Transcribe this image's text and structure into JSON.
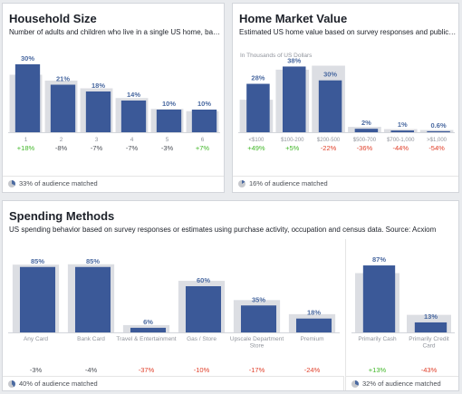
{
  "cards": {
    "household": {
      "title": "Household Size",
      "description": "Number of adults and children who live in a single US home, based...",
      "footer": "33% of audience matched"
    },
    "home_value": {
      "title": "Home Market Value",
      "description": "Estimated US home value based on survey responses and publicly...",
      "footer": "16% of audience matched"
    },
    "spending": {
      "title": "Spending Methods",
      "description": "US spending behavior based on survey responses or estimates using purchase activity, occupation and census data. Source: Acxiom",
      "footer": "40% of audience matched",
      "footer_right": "32% of audience matched"
    }
  },
  "colors": {
    "bar": "#3b5998",
    "benchmark": "#dcdee3",
    "positive": "#42b72a",
    "negative": "#e0402b",
    "neutral": "#90949c"
  },
  "chart_data": [
    {
      "type": "bar",
      "title": "Household Size",
      "categories": [
        "1",
        "2",
        "3",
        "4",
        "5",
        "6"
      ],
      "series": [
        {
          "values": [
            30,
            21,
            18,
            14,
            10,
            10
          ]
        },
        {
          "values": [
            25.4,
            22.8,
            19.4,
            15.1,
            10.3,
            9.3
          ]
        }
      ],
      "value_labels": [
        "30%",
        "21%",
        "18%",
        "14%",
        "10%",
        "10%"
      ],
      "deltas": [
        "+18%",
        "-8%",
        "-7%",
        "-7%",
        "-3%",
        "+7%"
      ],
      "ylim": [
        0,
        32
      ]
    },
    {
      "type": "bar",
      "title": "Home Market Value",
      "ylabel": "In Thousands of US Dollars",
      "categories": [
        "<$100",
        "$100-200",
        "$200-500",
        "$500-700",
        "$700-1,000",
        ">$1,000"
      ],
      "series": [
        {
          "values": [
            28,
            38,
            30,
            2,
            1,
            0.6
          ]
        },
        {
          "values": [
            18.8,
            36.2,
            38.5,
            3.1,
            1.8,
            1.3
          ]
        }
      ],
      "value_labels": [
        "28%",
        "38%",
        "30%",
        "2%",
        "1%",
        "0.6%"
      ],
      "deltas": [
        "+49%",
        "+5%",
        "-22%",
        "-36%",
        "-44%",
        "-54%"
      ],
      "ylim": [
        0,
        44
      ]
    },
    {
      "type": "bar",
      "title": "Spending Methods",
      "categories": [
        "Any Card",
        "Bank Card",
        "Travel & Entertainment",
        "Gas / Store",
        "Upscale Department Store",
        "Premium"
      ],
      "series": [
        {
          "values": [
            85,
            85,
            6,
            60,
            35,
            18
          ]
        },
        {
          "values": [
            88,
            88.5,
            9.5,
            67,
            42,
            23.7
          ]
        }
      ],
      "value_labels": [
        "85%",
        "85%",
        "6%",
        "60%",
        "35%",
        "18%"
      ],
      "deltas": [
        "-3%",
        "-4%",
        "-37%",
        "-10%",
        "-17%",
        "-24%"
      ],
      "ylim": [
        0,
        100
      ]
    },
    {
      "type": "bar",
      "title": "Spending Methods",
      "categories": [
        "Primarily Cash",
        "Primarily Credit Card"
      ],
      "series": [
        {
          "values": [
            87,
            13
          ]
        },
        {
          "values": [
            77,
            22.8
          ]
        }
      ],
      "value_labels": [
        "87%",
        "13%"
      ],
      "deltas": [
        "+13%",
        "-43%"
      ],
      "ylim": [
        0,
        100
      ]
    }
  ]
}
